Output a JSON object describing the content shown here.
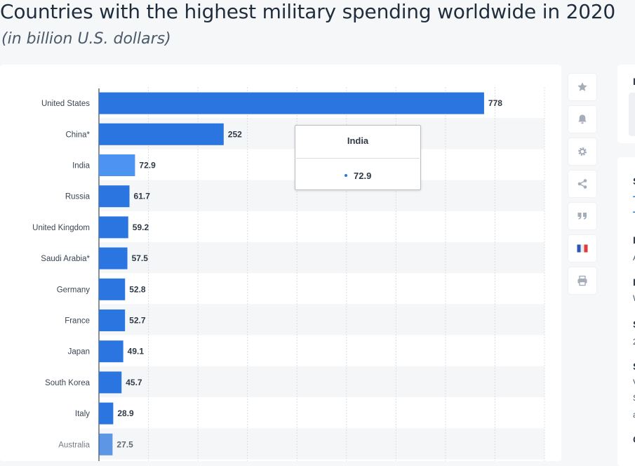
{
  "title": "Countries with the highest military spending worldwide in 2020",
  "subtitle": "(in billion U.S. dollars)",
  "chart_data": {
    "type": "bar",
    "orientation": "horizontal",
    "categories": [
      "United States",
      "China*",
      "India",
      "Russia",
      "United Kingdom",
      "Saudi Arabia*",
      "Germany",
      "France",
      "Japan",
      "South Korea",
      "Italy",
      "Australia"
    ],
    "values": [
      778,
      252,
      72.9,
      61.7,
      59.2,
      57.5,
      52.8,
      52.7,
      49.1,
      45.7,
      28.9,
      27.5
    ],
    "value_labels": [
      "778",
      "252",
      "72.9",
      "61.7",
      "59.2",
      "57.5",
      "52.8",
      "52.7",
      "49.1",
      "45.7",
      "28.9",
      "27.5"
    ],
    "highlighted_category": "India",
    "xlim": [
      0,
      900
    ],
    "grid": true,
    "legend": "none",
    "colors": {
      "bar": "#2b75e0",
      "bar_highlight": "#4d93f2",
      "stripe": "#f5f6f8",
      "grid": "#d9dde2"
    }
  },
  "tooltip": {
    "title": "India",
    "value": "72.9"
  },
  "toolbar": {
    "buttons": [
      {
        "icon": "star-icon"
      },
      {
        "icon": "bell-icon"
      },
      {
        "icon": "gear-icon"
      },
      {
        "icon": "share-icon"
      },
      {
        "icon": "quote-icon"
      },
      {
        "icon": "flag-fr-icon"
      },
      {
        "icon": "print-icon"
      }
    ]
  },
  "sidebar_fragments": [
    "I",
    "S",
    "T",
    "T",
    "I",
    "A",
    "I",
    "W",
    "S",
    "2",
    "S",
    "V",
    "S",
    "a",
    "C"
  ]
}
